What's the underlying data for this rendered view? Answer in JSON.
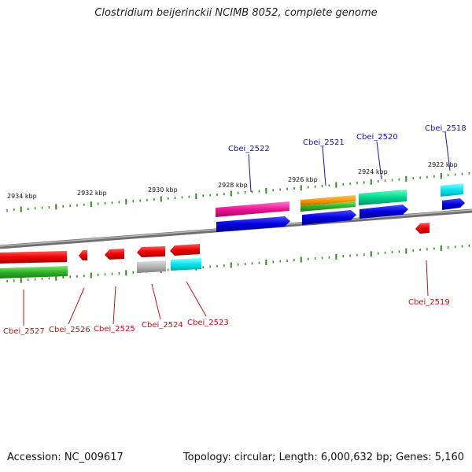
{
  "title": "Clostridium beijerinckii NCIMB 8052, complete genome",
  "footer": {
    "accession": "Accession: NC_009617",
    "summary": "Topology: circular; Length: 6,000,632 bp; Genes: 5,160"
  },
  "colors": {
    "backbone": "#8a8a8a",
    "tick": "#2e8b1e",
    "label_top": "#1010c0",
    "label_bottom": "#c81010"
  },
  "kbp_labels": [
    "2934 kbp",
    "2932 kbp",
    "2930 kbp",
    "2928 kbp",
    "2926 kbp",
    "2924 kbp",
    "2922 kbp"
  ],
  "genes_top": [
    {
      "label": "Cbei_2522"
    },
    {
      "label": "Cbei_2521"
    },
    {
      "label": "Cbei_2520"
    },
    {
      "label": "Cbei_2518"
    }
  ],
  "genes_bottom": [
    {
      "label": "Cbei_2527"
    },
    {
      "label": "Cbei_2526"
    },
    {
      "label": "Cbei_2525"
    },
    {
      "label": "Cbei_2524"
    },
    {
      "label": "Cbei_2523"
    },
    {
      "label": "Cbei_2519"
    }
  ]
}
